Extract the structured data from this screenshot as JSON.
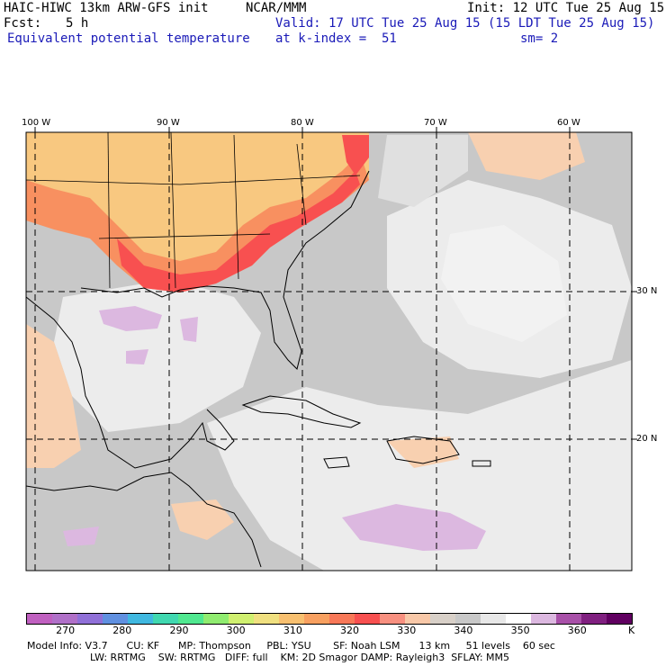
{
  "header": {
    "model_title": "HAIC-HIWC 13km ARW-GFS init",
    "org": "NCAR/MMM",
    "init": "Init: 12 UTC Tue 25 Aug 15",
    "fcst_label": "Fcst:",
    "fcst_value": "5 h",
    "valid": "Valid: 17 UTC Tue 25 Aug 15 (15 LDT Tue 25 Aug 15)",
    "field": "Equivalent potential temperature",
    "level": "at k-index =  51",
    "smoothing": "sm= 2"
  },
  "map": {
    "lon_labels": [
      "100 W",
      "90 W",
      "80 W",
      "70 W",
      "60 W"
    ],
    "lat_labels": [
      "30 N",
      "20 N"
    ],
    "colors": {
      "land_warm": "#f8c880",
      "land_hot": "#f89060",
      "hot_core": "#f85050",
      "ocean_gray": "#c8c8c8",
      "ocean_light": "#e8e8e8",
      "lilac": "#dcb8e0",
      "peach": "#f8d0b0"
    }
  },
  "colorbar": {
    "colors": [
      "#c060c0",
      "#b070c8",
      "#9070d8",
      "#6090e0",
      "#40b8e0",
      "#40d8b0",
      "#50e890",
      "#90ec70",
      "#d0f070",
      "#f0e080",
      "#f8c070",
      "#f8a060",
      "#f87858",
      "#f85050",
      "#f89080",
      "#f8c8a8",
      "#d8d0c8",
      "#c8c8c8",
      "#e8e8e8",
      "#ffffff",
      "#dcb8e0",
      "#a850a8",
      "#802080",
      "#600060"
    ],
    "tick_labels": [
      "270",
      "280",
      "290",
      "300",
      "310",
      "320",
      "330",
      "340",
      "350",
      "360"
    ],
    "unit": "K"
  },
  "model_info": {
    "line1": "Model Info: V3.7      CU: KF      MP: Thompson     PBL: YSU       SF: Noah LSM      13 km     51 levels    60 sec",
    "line2": "LW: RRTMG    SW: RRTMG   DIFF: full    KM: 2D Smagor DAMP: Rayleigh3  SFLAY: MM5"
  }
}
